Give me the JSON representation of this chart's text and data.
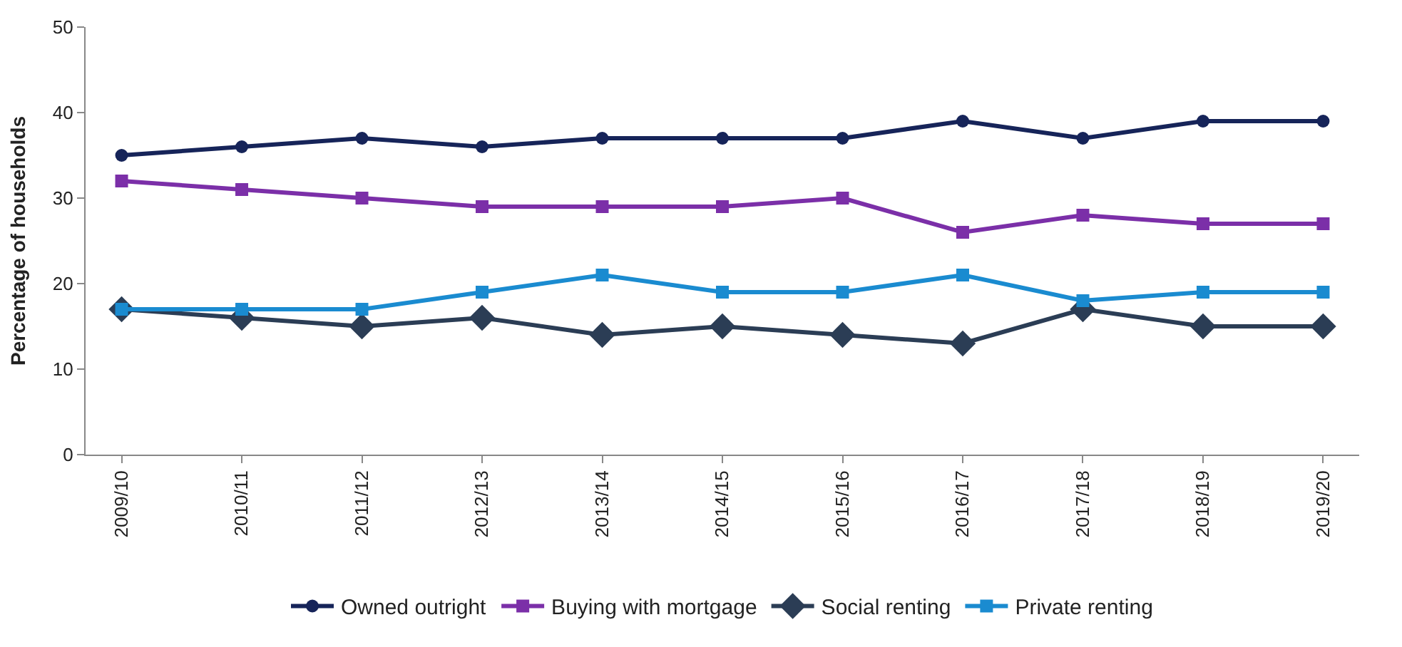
{
  "chart_data": {
    "type": "line",
    "ylabel": "Percentage of households",
    "categories": [
      "2009/10",
      "2010/11",
      "2011/12",
      "2012/13",
      "2013/14",
      "2014/15",
      "2015/16",
      "2016/17",
      "2017/18",
      "2018/19",
      "2019/20"
    ],
    "series": [
      {
        "name": "Owned outright",
        "color": "#162459",
        "marker": "circle",
        "values": [
          35,
          36,
          37,
          36,
          37,
          37,
          37,
          39,
          37,
          39,
          39
        ]
      },
      {
        "name": "Buying with mortgage",
        "color": "#7b2fa8",
        "marker": "square",
        "values": [
          32,
          31,
          30,
          29,
          29,
          29,
          30,
          26,
          28,
          27,
          27
        ]
      },
      {
        "name": "Social renting",
        "color": "#2b3d55",
        "marker": "diamond",
        "values": [
          17,
          16,
          15,
          16,
          14,
          15,
          14,
          13,
          17,
          15,
          15
        ]
      },
      {
        "name": "Private renting",
        "color": "#1a8bd0",
        "marker": "square",
        "values": [
          17,
          17,
          17,
          19,
          21,
          19,
          19,
          21,
          18,
          19,
          19
        ]
      }
    ],
    "ylim": [
      0,
      50
    ],
    "yticks": [
      0,
      10,
      20,
      30,
      40,
      50
    ],
    "legend": "bottom",
    "line_style": "solid"
  }
}
